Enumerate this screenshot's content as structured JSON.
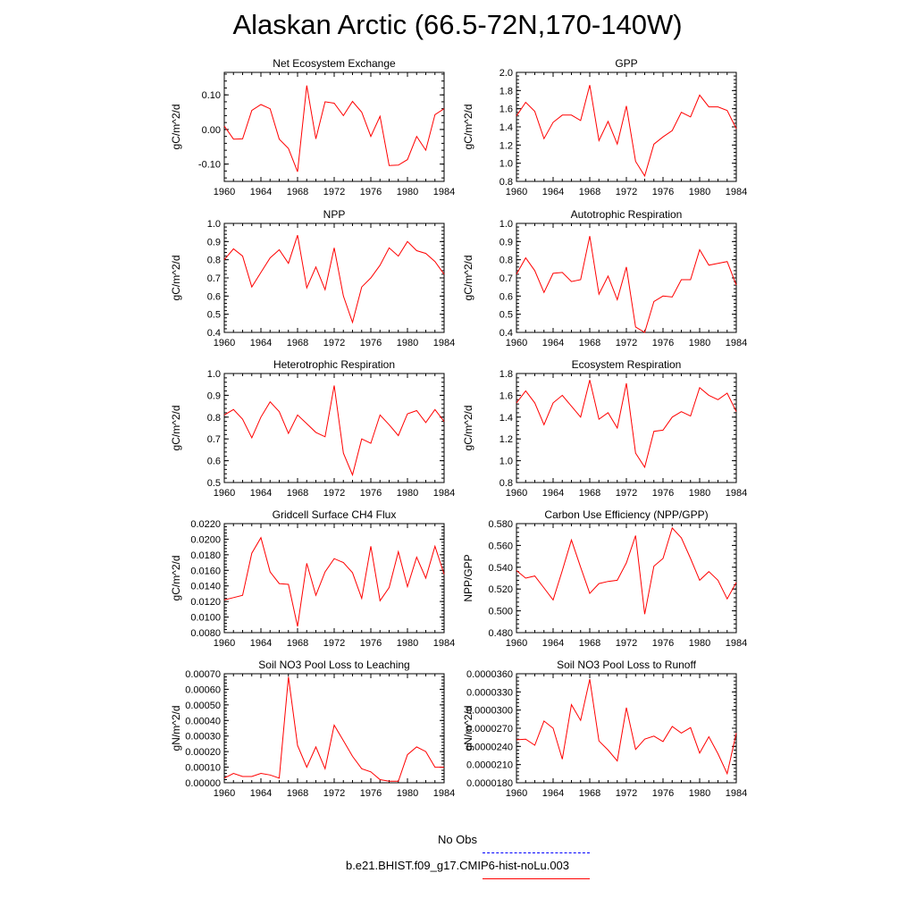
{
  "page": {
    "title": "Alaskan Arctic (66.5-72N,170-140W)"
  },
  "legend": {
    "entries": [
      {
        "label": "No Obs",
        "color": "#0000ff",
        "style": "dashed"
      },
      {
        "label": "b.e21.BHIST.f09_g17.CMIP6-hist-noLu.003",
        "color": "#ff0000",
        "style": "solid"
      }
    ]
  },
  "chart_data": [
    {
      "type": "line",
      "title": "Net Ecosystem Exchange",
      "ylabel": "gC/m^2/d",
      "xlim": [
        1960,
        1984
      ],
      "ylim": [
        -0.15,
        0.165
      ],
      "xticks": [
        1960,
        1964,
        1968,
        1972,
        1976,
        1980,
        1984
      ],
      "yticks": [
        -0.1,
        0.0,
        0.1
      ],
      "ytick_labels": [
        "-0.10",
        "0.00",
        "0.10"
      ],
      "x": [
        1960,
        1961,
        1962,
        1963,
        1964,
        1965,
        1966,
        1967,
        1968,
        1969,
        1970,
        1971,
        1972,
        1973,
        1974,
        1975,
        1976,
        1977,
        1978,
        1979,
        1980,
        1981,
        1982,
        1983,
        1984
      ],
      "series": [
        {
          "name": "b.e21.BHIST.f09_g17.CMIP6-hist-noLu.003",
          "color": "#ff0000",
          "values": [
            0.01,
            -0.028,
            -0.027,
            0.055,
            0.072,
            0.06,
            -0.028,
            -0.055,
            -0.122,
            0.127,
            -0.027,
            0.08,
            0.076,
            0.04,
            0.081,
            0.05,
            -0.02,
            0.038,
            -0.104,
            -0.103,
            -0.087,
            -0.02,
            -0.06,
            0.043,
            0.06
          ]
        }
      ]
    },
    {
      "type": "line",
      "title": "GPP",
      "ylabel": "gC/m^2/d",
      "xlim": [
        1960,
        1984
      ],
      "ylim": [
        0.8,
        2.0
      ],
      "xticks": [
        1960,
        1964,
        1968,
        1972,
        1976,
        1980,
        1984
      ],
      "yticks": [
        0.8,
        1.0,
        1.2,
        1.4,
        1.6,
        1.8,
        2.0
      ],
      "ytick_labels": [
        "0.8",
        "1.0",
        "1.2",
        "1.4",
        "1.6",
        "1.8",
        "2.0"
      ],
      "x": [
        1960,
        1961,
        1962,
        1963,
        1964,
        1965,
        1966,
        1967,
        1968,
        1969,
        1970,
        1971,
        1972,
        1973,
        1974,
        1975,
        1976,
        1977,
        1978,
        1979,
        1980,
        1981,
        1982,
        1983,
        1984
      ],
      "series": [
        {
          "name": "b.e21.BHIST.f09_g17.CMIP6-hist-noLu.003",
          "color": "#ff0000",
          "values": [
            1.52,
            1.67,
            1.57,
            1.27,
            1.45,
            1.53,
            1.53,
            1.47,
            1.86,
            1.25,
            1.46,
            1.21,
            1.63,
            1.02,
            0.86,
            1.21,
            1.29,
            1.36,
            1.56,
            1.51,
            1.75,
            1.62,
            1.62,
            1.58,
            1.38
          ]
        }
      ]
    },
    {
      "type": "line",
      "title": "NPP",
      "ylabel": "gC/m^2/d",
      "xlim": [
        1960,
        1984
      ],
      "ylim": [
        0.4,
        1.0
      ],
      "xticks": [
        1960,
        1964,
        1968,
        1972,
        1976,
        1980,
        1984
      ],
      "yticks": [
        0.4,
        0.5,
        0.6,
        0.7,
        0.8,
        0.9,
        1.0
      ],
      "ytick_labels": [
        "0.4",
        "0.5",
        "0.6",
        "0.7",
        "0.8",
        "0.9",
        "1.0"
      ],
      "x": [
        1960,
        1961,
        1962,
        1963,
        1964,
        1965,
        1966,
        1967,
        1968,
        1969,
        1970,
        1971,
        1972,
        1973,
        1974,
        1975,
        1976,
        1977,
        1978,
        1979,
        1980,
        1981,
        1982,
        1983,
        1984
      ],
      "series": [
        {
          "name": "b.e21.BHIST.f09_g17.CMIP6-hist-noLu.003",
          "color": "#ff0000",
          "values": [
            0.8,
            0.86,
            0.82,
            0.65,
            0.73,
            0.81,
            0.855,
            0.78,
            0.935,
            0.645,
            0.76,
            0.635,
            0.865,
            0.6,
            0.455,
            0.65,
            0.7,
            0.77,
            0.865,
            0.82,
            0.9,
            0.85,
            0.835,
            0.79,
            0.72
          ]
        }
      ]
    },
    {
      "type": "line",
      "title": "Autotrophic Respiration",
      "ylabel": "gC/m^2/d",
      "xlim": [
        1960,
        1984
      ],
      "ylim": [
        0.4,
        1.0
      ],
      "xticks": [
        1960,
        1964,
        1968,
        1972,
        1976,
        1980,
        1984
      ],
      "yticks": [
        0.4,
        0.5,
        0.6,
        0.7,
        0.8,
        0.9,
        1.0
      ],
      "ytick_labels": [
        "0.4",
        "0.5",
        "0.6",
        "0.7",
        "0.8",
        "0.9",
        "1.0"
      ],
      "x": [
        1960,
        1961,
        1962,
        1963,
        1964,
        1965,
        1966,
        1967,
        1968,
        1969,
        1970,
        1971,
        1972,
        1973,
        1974,
        1975,
        1976,
        1977,
        1978,
        1979,
        1980,
        1981,
        1982,
        1983,
        1984
      ],
      "series": [
        {
          "name": "b.e21.BHIST.f09_g17.CMIP6-hist-noLu.003",
          "color": "#ff0000",
          "values": [
            0.72,
            0.81,
            0.74,
            0.62,
            0.725,
            0.73,
            0.68,
            0.69,
            0.93,
            0.61,
            0.71,
            0.58,
            0.76,
            0.43,
            0.4,
            0.57,
            0.6,
            0.595,
            0.69,
            0.69,
            0.855,
            0.77,
            0.78,
            0.79,
            0.66
          ]
        }
      ]
    },
    {
      "type": "line",
      "title": "Heterotrophic Respiration",
      "ylabel": "gC/m^2/d",
      "xlim": [
        1960,
        1984
      ],
      "ylim": [
        0.5,
        1.0
      ],
      "xticks": [
        1960,
        1964,
        1968,
        1972,
        1976,
        1980,
        1984
      ],
      "yticks": [
        0.5,
        0.6,
        0.7,
        0.8,
        0.9,
        1.0
      ],
      "ytick_labels": [
        "0.5",
        "0.6",
        "0.7",
        "0.8",
        "0.9",
        "1.0"
      ],
      "x": [
        1960,
        1961,
        1962,
        1963,
        1964,
        1965,
        1966,
        1967,
        1968,
        1969,
        1970,
        1971,
        1972,
        1973,
        1974,
        1975,
        1976,
        1977,
        1978,
        1979,
        1980,
        1981,
        1982,
        1983,
        1984
      ],
      "series": [
        {
          "name": "b.e21.BHIST.f09_g17.CMIP6-hist-noLu.003",
          "color": "#ff0000",
          "values": [
            0.81,
            0.835,
            0.79,
            0.705,
            0.8,
            0.87,
            0.825,
            0.725,
            0.81,
            0.77,
            0.73,
            0.71,
            0.945,
            0.635,
            0.535,
            0.7,
            0.68,
            0.81,
            0.765,
            0.715,
            0.815,
            0.83,
            0.775,
            0.835,
            0.78
          ]
        }
      ]
    },
    {
      "type": "line",
      "title": "Ecosystem Respiration",
      "ylabel": "gC/m^2/d",
      "xlim": [
        1960,
        1984
      ],
      "ylim": [
        0.8,
        1.8
      ],
      "xticks": [
        1960,
        1964,
        1968,
        1972,
        1976,
        1980,
        1984
      ],
      "yticks": [
        0.8,
        1.0,
        1.2,
        1.4,
        1.6,
        1.8
      ],
      "ytick_labels": [
        "0.8",
        "1.0",
        "1.2",
        "1.4",
        "1.6",
        "1.8"
      ],
      "x": [
        1960,
        1961,
        1962,
        1963,
        1964,
        1965,
        1966,
        1967,
        1968,
        1969,
        1970,
        1971,
        1972,
        1973,
        1974,
        1975,
        1976,
        1977,
        1978,
        1979,
        1980,
        1981,
        1982,
        1983,
        1984
      ],
      "series": [
        {
          "name": "b.e21.BHIST.f09_g17.CMIP6-hist-noLu.003",
          "color": "#ff0000",
          "values": [
            1.53,
            1.64,
            1.53,
            1.33,
            1.53,
            1.6,
            1.5,
            1.4,
            1.74,
            1.38,
            1.44,
            1.3,
            1.71,
            1.07,
            0.94,
            1.27,
            1.28,
            1.4,
            1.45,
            1.41,
            1.67,
            1.6,
            1.56,
            1.62,
            1.45
          ]
        }
      ]
    },
    {
      "type": "line",
      "title": "Gridcell Surface CH4 Flux",
      "ylabel": "gC/m^2/d",
      "xlim": [
        1960,
        1984
      ],
      "ylim": [
        0.008,
        0.022
      ],
      "xticks": [
        1960,
        1964,
        1968,
        1972,
        1976,
        1980,
        1984
      ],
      "yticks": [
        0.008,
        0.01,
        0.012,
        0.014,
        0.016,
        0.018,
        0.02,
        0.022
      ],
      "ytick_labels": [
        "0.0080",
        "0.0100",
        "0.0120",
        "0.0140",
        "0.0160",
        "0.0180",
        "0.0200",
        "0.0220"
      ],
      "x": [
        1960,
        1961,
        1962,
        1963,
        1964,
        1965,
        1966,
        1967,
        1968,
        1969,
        1970,
        1971,
        1972,
        1973,
        1974,
        1975,
        1976,
        1977,
        1978,
        1979,
        1980,
        1981,
        1982,
        1983,
        1984
      ],
      "series": [
        {
          "name": "b.e21.BHIST.f09_g17.CMIP6-hist-noLu.003",
          "color": "#ff0000",
          "values": [
            0.0122,
            0.0125,
            0.0128,
            0.0182,
            0.0202,
            0.0158,
            0.0143,
            0.0142,
            0.0088,
            0.0169,
            0.0128,
            0.0158,
            0.0175,
            0.017,
            0.0157,
            0.0124,
            0.0191,
            0.0121,
            0.0138,
            0.0184,
            0.0139,
            0.0177,
            0.015,
            0.0191,
            0.0155
          ]
        }
      ]
    },
    {
      "type": "line",
      "title": "Carbon Use Efficiency (NPP/GPP)",
      "ylabel": "NPP/GPP",
      "xlim": [
        1960,
        1984
      ],
      "ylim": [
        0.48,
        0.58
      ],
      "xticks": [
        1960,
        1964,
        1968,
        1972,
        1976,
        1980,
        1984
      ],
      "yticks": [
        0.48,
        0.5,
        0.52,
        0.54,
        0.56,
        0.58
      ],
      "ytick_labels": [
        "0.480",
        "0.500",
        "0.520",
        "0.540",
        "0.560",
        "0.580"
      ],
      "x": [
        1960,
        1961,
        1962,
        1963,
        1964,
        1965,
        1966,
        1967,
        1968,
        1969,
        1970,
        1971,
        1972,
        1973,
        1974,
        1975,
        1976,
        1977,
        1978,
        1979,
        1980,
        1981,
        1982,
        1983,
        1984
      ],
      "series": [
        {
          "name": "b.e21.BHIST.f09_g17.CMIP6-hist-noLu.003",
          "color": "#ff0000",
          "values": [
            0.537,
            0.53,
            0.532,
            0.521,
            0.51,
            0.537,
            0.565,
            0.54,
            0.516,
            0.525,
            0.527,
            0.528,
            0.544,
            0.569,
            0.497,
            0.541,
            0.548,
            0.576,
            0.567,
            0.548,
            0.528,
            0.536,
            0.528,
            0.511,
            0.526
          ]
        }
      ]
    },
    {
      "type": "line",
      "title": "Soil NO3 Pool Loss to Leaching",
      "ylabel": "gN/m^2/d",
      "xlim": [
        1960,
        1984
      ],
      "ylim": [
        0.0,
        0.0007
      ],
      "xticks": [
        1960,
        1964,
        1968,
        1972,
        1976,
        1980,
        1984
      ],
      "yticks": [
        0,
        0.0001,
        0.0002,
        0.0003,
        0.0004,
        0.0005,
        0.0006,
        0.0007
      ],
      "ytick_labels": [
        "0.00000",
        "0.00010",
        "0.00020",
        "0.00030",
        "0.00040",
        "0.00050",
        "0.00060",
        "0.00070"
      ],
      "x": [
        1960,
        1961,
        1962,
        1963,
        1964,
        1965,
        1966,
        1967,
        1968,
        1969,
        1970,
        1971,
        1972,
        1973,
        1974,
        1975,
        1976,
        1977,
        1978,
        1979,
        1980,
        1981,
        1982,
        1983,
        1984
      ],
      "series": [
        {
          "name": "b.e21.BHIST.f09_g17.CMIP6-hist-noLu.003",
          "color": "#ff0000",
          "values": [
            3e-05,
            6e-05,
            4e-05,
            4e-05,
            6e-05,
            5e-05,
            3e-05,
            0.00068,
            0.00024,
            0.0001,
            0.00023,
            9e-05,
            0.00037,
            0.00027,
            0.00017,
            9e-05,
            7e-05,
            2e-05,
            1e-05,
            1e-05,
            0.00018,
            0.00023,
            0.0002,
            0.0001,
            0.0001
          ]
        }
      ]
    },
    {
      "type": "line",
      "title": "Soil NO3 Pool Loss to Runoff",
      "ylabel": "gN/m^2/d",
      "xlim": [
        1960,
        1984
      ],
      "ylim": [
        1.8e-05,
        3.6e-05
      ],
      "xticks": [
        1960,
        1964,
        1968,
        1972,
        1976,
        1980,
        1984
      ],
      "yticks": [
        1.8e-05,
        2.1e-05,
        2.4e-05,
        2.7e-05,
        3e-05,
        3.3e-05,
        3.6e-05
      ],
      "ytick_labels": [
        "0.0000180",
        "0.0000210",
        "0.0000240",
        "0.0000270",
        "0.0000300",
        "0.0000330",
        "0.0000360"
      ],
      "x": [
        1960,
        1961,
        1962,
        1963,
        1964,
        1965,
        1966,
        1967,
        1968,
        1969,
        1970,
        1971,
        1972,
        1973,
        1974,
        1975,
        1976,
        1977,
        1978,
        1979,
        1980,
        1981,
        1982,
        1983,
        1984
      ],
      "series": [
        {
          "name": "b.e21.BHIST.f09_g17.CMIP6-hist-noLu.003",
          "color": "#ff0000",
          "values": [
            2.51e-05,
            2.52e-05,
            2.42e-05,
            2.82e-05,
            2.7e-05,
            2.19e-05,
            3.09e-05,
            2.83e-05,
            3.51e-05,
            2.49e-05,
            2.34e-05,
            2.16e-05,
            3.04e-05,
            2.35e-05,
            2.52e-05,
            2.57e-05,
            2.48e-05,
            2.73e-05,
            2.62e-05,
            2.71e-05,
            2.29e-05,
            2.56e-05,
            2.28e-05,
            1.95e-05,
            2.62e-05
          ]
        }
      ]
    }
  ]
}
